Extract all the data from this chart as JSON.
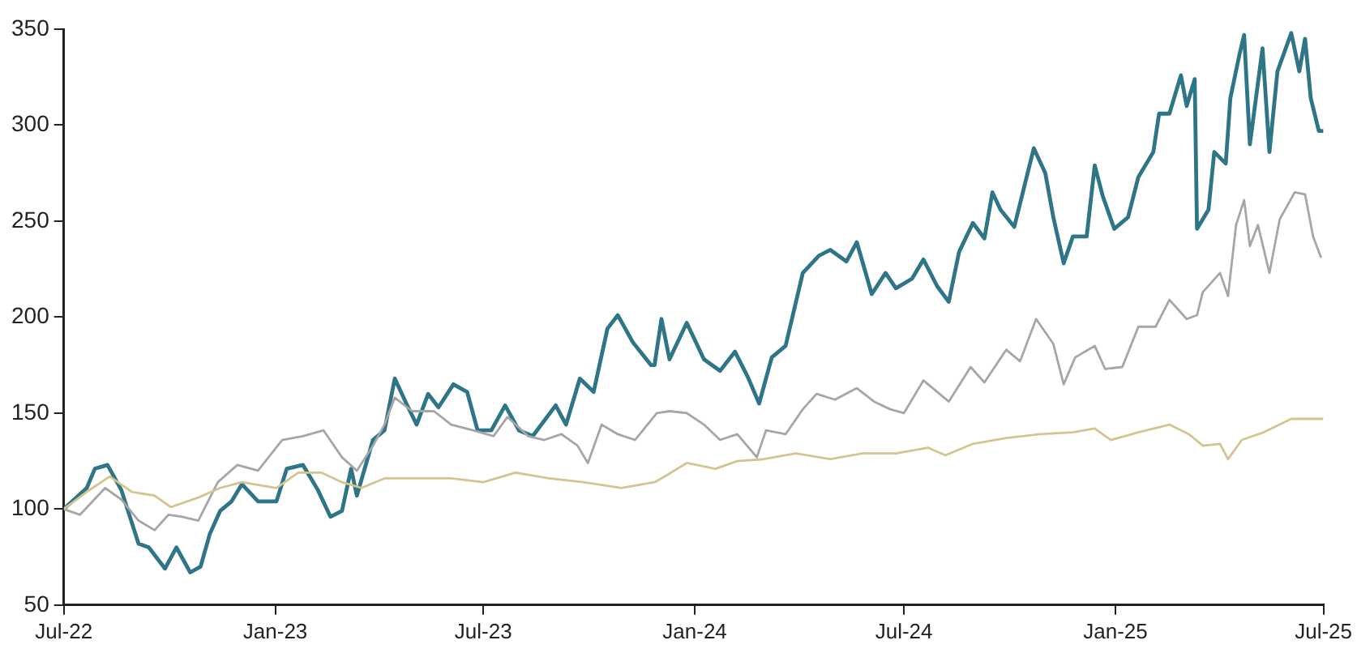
{
  "chart_data": {
    "type": "line",
    "xlim": [
      "2022-07-01",
      "2025-07-01"
    ],
    "xticks": [
      {
        "value": "2022-07-01",
        "label": "Jul-22"
      },
      {
        "value": "2023-01-01",
        "label": "Jan-23"
      },
      {
        "value": "2023-07-01",
        "label": "Jul-23"
      },
      {
        "value": "2024-01-01",
        "label": "Jan-24"
      },
      {
        "value": "2024-07-01",
        "label": "Jul-24"
      },
      {
        "value": "2025-01-01",
        "label": "Jan-25"
      },
      {
        "value": "2025-07-01",
        "label": "Jul-25"
      }
    ],
    "ylim": [
      50,
      350
    ],
    "yticks": [
      50,
      100,
      150,
      200,
      250,
      300,
      350
    ],
    "grid": false,
    "legend": false,
    "marker": "none",
    "line_style": "solid",
    "series": [
      {
        "color": "#2e7588",
        "x": [
          "2022-07-01",
          "2022-07-21",
          "2022-07-28",
          "2022-08-08",
          "2022-08-20",
          "2022-09-04",
          "2022-09-13",
          "2022-09-27",
          "2022-10-07",
          "2022-10-19",
          "2022-10-28",
          "2022-11-05",
          "2022-11-14",
          "2022-11-24",
          "2022-12-03",
          "2022-12-17",
          "2023-01-02",
          "2023-01-11",
          "2023-01-25",
          "2023-02-07",
          "2023-02-18",
          "2023-02-28",
          "2023-03-08",
          "2023-03-13",
          "2023-03-27",
          "2023-04-06",
          "2023-04-15",
          "2023-04-25",
          "2023-05-04",
          "2023-05-14",
          "2023-05-23",
          "2023-06-05",
          "2023-06-17",
          "2023-06-26",
          "2023-07-08",
          "2023-07-20",
          "2023-08-01",
          "2023-08-13",
          "2023-09-02",
          "2023-09-11",
          "2023-09-23",
          "2023-10-05",
          "2023-10-17",
          "2023-10-26",
          "2023-11-08",
          "2023-11-24",
          "2023-11-27",
          "2023-12-03",
          "2023-12-10",
          "2023-12-25",
          "2024-01-09",
          "2024-01-23",
          "2024-02-05",
          "2024-02-16",
          "2024-02-26",
          "2024-03-08",
          "2024-03-20",
          "2024-04-04",
          "2024-04-18",
          "2024-04-28",
          "2024-05-12",
          "2024-05-21",
          "2024-06-03",
          "2024-06-15",
          "2024-06-24",
          "2024-07-08",
          "2024-07-18",
          "2024-07-30",
          "2024-08-09",
          "2024-08-18",
          "2024-08-30",
          "2024-09-09",
          "2024-09-16",
          "2024-09-23",
          "2024-10-05",
          "2024-10-22",
          "2024-11-01",
          "2024-11-08",
          "2024-11-17",
          "2024-11-25",
          "2024-12-07",
          "2024-12-14",
          "2024-12-21",
          "2024-12-31",
          "2025-01-12",
          "2025-01-21",
          "2025-02-03",
          "2025-02-08",
          "2025-02-17",
          "2025-02-27",
          "2025-03-04",
          "2025-03-11",
          "2025-03-13",
          "2025-03-23",
          "2025-03-28",
          "2025-04-07",
          "2025-04-11",
          "2025-04-19",
          "2025-04-23",
          "2025-04-28",
          "2025-05-09",
          "2025-05-15",
          "2025-05-22",
          "2025-06-03",
          "2025-06-10",
          "2025-06-15",
          "2025-06-20",
          "2025-06-27",
          "2025-07-01"
        ],
        "values": [
          100,
          111,
          121,
          123,
          110,
          82,
          80,
          69,
          80,
          67,
          70,
          87,
          99,
          104,
          113,
          104,
          104,
          121,
          123,
          110,
          96,
          99,
          121,
          107,
          136,
          141,
          168,
          155,
          144,
          160,
          153,
          165,
          161,
          141,
          141,
          154,
          141,
          138,
          154,
          144,
          168,
          161,
          194,
          201,
          187,
          175,
          175,
          199,
          178,
          197,
          178,
          172,
          182,
          169,
          155,
          179,
          185,
          223,
          232,
          235,
          229,
          239,
          212,
          223,
          215,
          220,
          230,
          216,
          208,
          234,
          249,
          241,
          265,
          256,
          247,
          288,
          275,
          252,
          228,
          242,
          242,
          279,
          263,
          246,
          252,
          273,
          286,
          306,
          306,
          326,
          310,
          324,
          246,
          256,
          286,
          280,
          314,
          337,
          347,
          290,
          340,
          286,
          328,
          348,
          328,
          345,
          314,
          297,
          297
        ]
      },
      {
        "color": "#a6a6a6",
        "x": [
          "2022-07-01",
          "2022-07-15",
          "2022-08-06",
          "2022-08-20",
          "2022-09-04",
          "2022-09-18",
          "2022-09-30",
          "2022-10-12",
          "2022-10-26",
          "2022-11-12",
          "2022-11-29",
          "2022-12-17",
          "2023-01-07",
          "2023-01-25",
          "2023-02-12",
          "2023-02-28",
          "2023-03-13",
          "2023-03-27",
          "2023-04-06",
          "2023-04-15",
          "2023-04-30",
          "2023-05-19",
          "2023-06-03",
          "2023-06-22",
          "2023-07-10",
          "2023-07-22",
          "2023-08-09",
          "2023-08-23",
          "2023-09-07",
          "2023-09-21",
          "2023-09-30",
          "2023-10-12",
          "2023-10-26",
          "2023-11-10",
          "2023-11-29",
          "2023-12-10",
          "2023-12-25",
          "2024-01-09",
          "2024-01-23",
          "2024-02-07",
          "2024-02-24",
          "2024-03-03",
          "2024-03-20",
          "2024-04-04",
          "2024-04-16",
          "2024-05-02",
          "2024-05-21",
          "2024-06-05",
          "2024-06-19",
          "2024-07-01",
          "2024-07-18",
          "2024-08-09",
          "2024-08-28",
          "2024-09-09",
          "2024-09-28",
          "2024-10-10",
          "2024-10-24",
          "2024-11-08",
          "2024-11-17",
          "2024-11-27",
          "2024-12-14",
          "2024-12-23",
          "2025-01-07",
          "2025-01-21",
          "2025-02-05",
          "2025-02-17",
          "2025-03-04",
          "2025-03-13",
          "2025-03-18",
          "2025-04-02",
          "2025-04-09",
          "2025-04-16",
          "2025-04-23",
          "2025-04-28",
          "2025-05-05",
          "2025-05-15",
          "2025-05-24",
          "2025-06-06",
          "2025-06-15",
          "2025-06-22",
          "2025-06-29"
        ],
        "values": [
          100,
          97,
          111,
          105,
          94,
          89,
          97,
          96,
          94,
          114,
          123,
          120,
          136,
          138,
          141,
          127,
          120,
          133,
          144,
          158,
          151,
          151,
          144,
          141,
          138,
          148,
          138,
          136,
          139,
          133,
          124,
          144,
          139,
          136,
          150,
          151,
          150,
          144,
          136,
          139,
          127,
          141,
          139,
          152,
          160,
          157,
          163,
          156,
          152,
          150,
          167,
          156,
          174,
          166,
          183,
          177,
          199,
          186,
          165,
          179,
          185,
          173,
          174,
          195,
          195,
          209,
          199,
          201,
          213,
          223,
          211,
          248,
          261,
          237,
          248,
          223,
          251,
          265,
          264,
          242,
          231
        ]
      },
      {
        "color": "#d4c48f",
        "x": [
          "2022-07-01",
          "2022-07-21",
          "2022-08-10",
          "2022-08-29",
          "2022-09-18",
          "2022-10-02",
          "2022-10-26",
          "2022-11-14",
          "2022-12-03",
          "2023-01-02",
          "2023-01-21",
          "2023-02-10",
          "2023-02-28",
          "2023-03-17",
          "2023-04-06",
          "2023-05-04",
          "2023-06-03",
          "2023-07-01",
          "2023-07-29",
          "2023-08-27",
          "2023-09-26",
          "2023-10-29",
          "2023-11-27",
          "2023-12-06",
          "2023-12-25",
          "2024-01-19",
          "2024-02-07",
          "2024-03-01",
          "2024-03-29",
          "2024-04-28",
          "2024-05-26",
          "2024-06-24",
          "2024-07-22",
          "2024-08-06",
          "2024-08-30",
          "2024-09-28",
          "2024-10-27",
          "2024-11-25",
          "2024-12-14",
          "2024-12-28",
          "2025-01-21",
          "2025-02-17",
          "2025-03-06",
          "2025-03-18",
          "2025-04-02",
          "2025-04-09",
          "2025-04-21",
          "2025-05-10",
          "2025-06-03",
          "2025-07-01"
        ],
        "values": [
          100,
          109,
          117,
          109,
          107,
          101,
          106,
          111,
          114,
          111,
          119,
          119,
          114,
          111,
          116,
          116,
          116,
          114,
          119,
          116,
          114,
          111,
          114,
          117,
          124,
          121,
          125,
          126,
          129,
          126,
          129,
          129,
          132,
          128,
          134,
          137,
          139,
          140,
          142,
          136,
          140,
          144,
          139,
          133,
          134,
          126,
          136,
          140,
          147,
          147
        ]
      }
    ]
  }
}
